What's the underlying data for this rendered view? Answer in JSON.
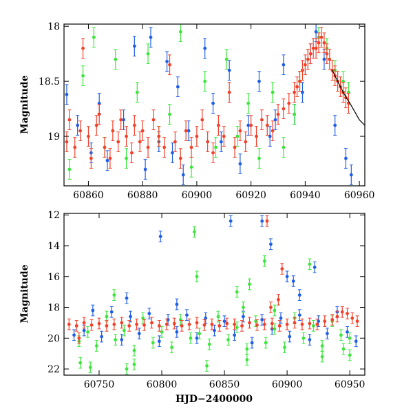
{
  "colors": {
    "blue": "#1f5ee6",
    "green": "#3be63b",
    "red": "#f2402a",
    "model": "#000000"
  },
  "chart_data": [
    {
      "type": "scatter",
      "title": "",
      "xlabel": "",
      "ylabel": "Magnitude",
      "xlim": [
        60851,
        60962
      ],
      "ylim": [
        19.45,
        17.98
      ],
      "y_inverted": true,
      "grid": false,
      "xticks": [
        60860,
        60880,
        60900,
        60920,
        60940,
        60960
      ],
      "yticks": [
        18,
        18.5,
        19
      ],
      "model_curve": {
        "x": [
          60950,
          60954,
          60957,
          60960,
          60962
        ],
        "y": [
          18.4,
          18.6,
          18.72,
          18.85,
          18.9
        ]
      },
      "series": [
        {
          "color": "blue",
          "x": [
            60852,
            60856,
            60861,
            60864,
            60867,
            60873,
            60877,
            60881,
            60883,
            60886,
            60889,
            60891,
            60893,
            60895,
            60897,
            60903,
            60906,
            60909,
            60912,
            60916,
            60919,
            60923,
            60927,
            60929,
            60932,
            60936,
            60939,
            60942,
            60944,
            60947,
            60951,
            60955,
            60957
          ],
          "y": [
            18.62,
            18.9,
            19.15,
            18.7,
            19.22,
            18.85,
            18.18,
            19.3,
            18.1,
            19.05,
            18.32,
            19.15,
            18.55,
            19.35,
            18.95,
            18.2,
            18.7,
            19.05,
            18.4,
            19.25,
            18.9,
            18.5,
            19.0,
            18.85,
            18.35,
            18.8,
            18.6,
            18.25,
            18.05,
            18.3,
            18.9,
            19.2,
            19.35
          ]
        },
        {
          "color": "green",
          "x": [
            60853,
            60858,
            60862,
            60866,
            60870,
            60874,
            60878,
            60882,
            60886,
            60890,
            60894,
            60898,
            60903,
            60907,
            60911,
            60915,
            60919,
            60923,
            60928,
            60932,
            60936,
            60938,
            60941,
            60945,
            60948,
            60951,
            60954,
            60956
          ],
          "y": [
            19.3,
            18.45,
            18.1,
            19.1,
            18.3,
            19.2,
            18.6,
            18.25,
            19.0,
            18.8,
            18.05,
            19.28,
            18.5,
            19.1,
            18.3,
            19.0,
            18.7,
            19.2,
            18.6,
            19.1,
            18.8,
            18.5,
            18.3,
            18.1,
            18.2,
            18.4,
            18.5,
            18.6
          ]
        },
        {
          "color": "red",
          "x": [
            60852,
            60853,
            60855,
            60857,
            60858,
            60860,
            60861,
            60863,
            60864,
            60866,
            60868,
            60869,
            60871,
            60872,
            60874,
            60876,
            60877,
            60879,
            60880,
            60882,
            60884,
            60886,
            60888,
            60890,
            60892,
            60894,
            60896,
            60898,
            60900,
            60902,
            60904,
            60906,
            60908,
            60910,
            60912,
            60914,
            60916,
            60918,
            60920,
            60922,
            60924,
            60926,
            60928,
            60930,
            60932,
            60934,
            60936,
            60937,
            60938,
            60939,
            60940,
            60941,
            60942,
            60943,
            60944,
            60945,
            60946,
            60947,
            60948,
            60949,
            60950,
            60951,
            60952,
            60953,
            60954,
            60955,
            60956
          ],
          "y": [
            19.05,
            18.85,
            19.1,
            18.95,
            18.2,
            19.0,
            19.2,
            18.9,
            18.8,
            19.1,
            19.2,
            18.95,
            19.05,
            18.85,
            19.0,
            19.15,
            18.9,
            19.05,
            18.95,
            19.1,
            18.85,
            19.0,
            19.1,
            18.35,
            19.05,
            19.2,
            18.95,
            19.1,
            19.0,
            18.85,
            19.05,
            19.15,
            18.9,
            19.0,
            18.6,
            19.1,
            18.95,
            19.05,
            18.9,
            19.0,
            18.85,
            18.9,
            18.95,
            18.8,
            18.75,
            18.7,
            18.6,
            18.55,
            18.5,
            18.4,
            18.35,
            18.3,
            18.25,
            18.2,
            18.2,
            18.15,
            18.1,
            18.15,
            18.25,
            18.3,
            18.4,
            18.45,
            18.5,
            18.55,
            18.6,
            18.65,
            18.7
          ]
        }
      ]
    },
    {
      "type": "scatter",
      "title": "",
      "xlabel": "HJD−2400000",
      "ylabel": "Magnitude",
      "xlim": [
        60722,
        60962
      ],
      "ylim": [
        22.4,
        11.9
      ],
      "y_inverted": true,
      "grid": false,
      "xticks": [
        60750,
        60800,
        60850,
        60900,
        60950
      ],
      "yticks": [
        12,
        14,
        16,
        18,
        20,
        22
      ],
      "series": [
        {
          "color": "blue",
          "x": [
            60730,
            60738,
            60745,
            60752,
            60760,
            60768,
            60775,
            60782,
            60790,
            60798,
            60805,
            60812,
            60820,
            60828,
            60835,
            60842,
            60850,
            60858,
            60865,
            60872,
            60880,
            60888,
            60895,
            60902,
            60910,
            60918,
            60925,
            60932,
            60940,
            60948,
            60955,
            60799,
            60772,
            60812,
            60855,
            60880,
            60887,
            60900,
            60905,
            60910,
            60922
          ],
          "y": [
            19.8,
            19.5,
            18.2,
            19.9,
            18.3,
            20.1,
            18.6,
            19.7,
            18.4,
            20.2,
            18.8,
            19.6,
            18.5,
            20.0,
            18.7,
            19.5,
            18.9,
            19.8,
            18.6,
            20.3,
            18.8,
            19.4,
            18.7,
            19.9,
            18.5,
            20.1,
            18.9,
            19.7,
            18.3,
            19.6,
            20.2,
            13.4,
            17.4,
            17.8,
            12.4,
            12.4,
            13.9,
            16.0,
            16.3,
            17.2,
            15.4
          ]
        },
        {
          "color": "green",
          "x": [
            60734,
            60741,
            60748,
            60756,
            60763,
            60770,
            60778,
            60785,
            60793,
            60800,
            60808,
            60815,
            60823,
            60830,
            60838,
            60845,
            60853,
            60860,
            60868,
            60875,
            60883,
            60890,
            60898,
            60906,
            60913,
            60921,
            60928,
            60936,
            60943,
            60950,
            60735,
            60743,
            60762,
            60778,
            60826,
            60828,
            60860,
            60865,
            60870,
            60882,
            60890,
            60918,
            60928,
            60945,
            60950,
            60772,
            60836,
            60868
          ],
          "y": [
            20.2,
            19.6,
            20.5,
            18.6,
            20.1,
            19.5,
            20.8,
            18.7,
            20.3,
            19.6,
            20.6,
            18.8,
            20.0,
            19.7,
            20.4,
            18.6,
            20.1,
            19.3,
            20.7,
            18.9,
            20.3,
            19.4,
            20.6,
            18.7,
            20.0,
            19.2,
            20.5,
            18.9,
            19.8,
            20.0,
            21.6,
            21.9,
            17.2,
            21.7,
            13.1,
            16.0,
            17.0,
            18.0,
            16.5,
            15.0,
            18.2,
            15.2,
            21.2,
            20.7,
            21.1,
            22.0,
            21.8,
            21.4
          ]
        },
        {
          "color": "red",
          "x": [
            60726,
            60732,
            60738,
            60744,
            60750,
            60756,
            60762,
            60768,
            60774,
            60780,
            60786,
            60792,
            60798,
            60804,
            60810,
            60816,
            60822,
            60828,
            60834,
            60840,
            60846,
            60852,
            60858,
            60864,
            60870,
            60876,
            60882,
            60888,
            60894,
            60900,
            60906,
            60912,
            60918,
            60924,
            60930,
            60936,
            60940,
            60944,
            60948,
            60952,
            60956,
            60734,
            60884,
            60896,
            60893,
            60887
          ],
          "y": [
            19.1,
            19.2,
            19.0,
            19.15,
            19.05,
            19.2,
            19.1,
            19.0,
            19.2,
            19.1,
            19.15,
            19.0,
            19.2,
            19.1,
            19.05,
            19.2,
            19.1,
            19.0,
            19.15,
            19.1,
            19.2,
            19.05,
            19.1,
            19.2,
            19.0,
            19.15,
            19.1,
            19.05,
            19.2,
            19.1,
            19.0,
            19.1,
            19.05,
            19.1,
            18.9,
            18.8,
            18.6,
            18.3,
            18.4,
            18.7,
            18.9,
            20.0,
            12.4,
            15.5,
            17.5,
            18.0
          ]
        }
      ]
    }
  ]
}
